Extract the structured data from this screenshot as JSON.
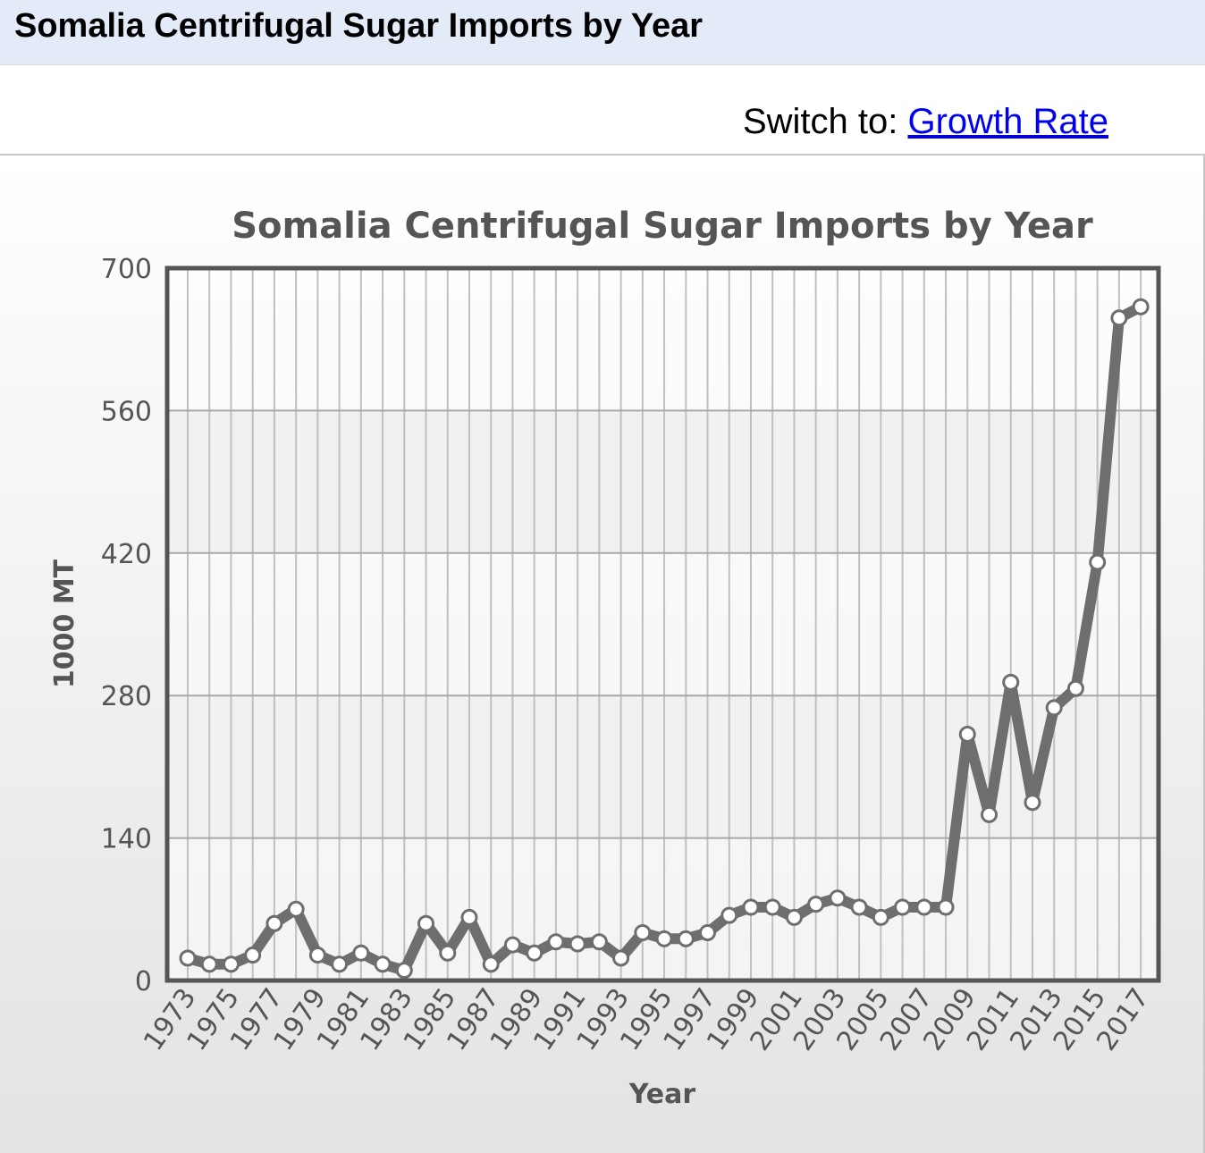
{
  "page": {
    "title": "Somalia Centrifugal Sugar Imports by Year",
    "switch_prefix": "Switch to:",
    "switch_link": "Growth Rate"
  },
  "colors": {
    "line": "#6e6e6e",
    "marker_fill": "#ffffff",
    "grid": "#c0c0c0",
    "header_bg": "#e4ebf8"
  },
  "chart_data": {
    "type": "line",
    "title": "Somalia Centrifugal Sugar Imports by Year",
    "xlabel": "Year",
    "ylabel": "1000 MT",
    "ylim": [
      0,
      700
    ],
    "yticks": [
      0,
      140,
      280,
      420,
      560,
      700
    ],
    "grid": true,
    "x": [
      1973,
      1974,
      1975,
      1976,
      1977,
      1978,
      1979,
      1980,
      1981,
      1982,
      1983,
      1984,
      1985,
      1986,
      1987,
      1988,
      1989,
      1990,
      1991,
      1992,
      1993,
      1994,
      1995,
      1996,
      1997,
      1998,
      1999,
      2000,
      2001,
      2002,
      2003,
      2004,
      2005,
      2006,
      2007,
      2008,
      2009,
      2010,
      2011,
      2012,
      2013,
      2014,
      2015,
      2016,
      2017
    ],
    "xtick_labels": [
      "1973",
      "1975",
      "1977",
      "1979",
      "1981",
      "1983",
      "1985",
      "1987",
      "1989",
      "1991",
      "1993",
      "1995",
      "1997",
      "1999",
      "2001",
      "2003",
      "2005",
      "2007",
      "2009",
      "2011",
      "2013",
      "2015",
      "2017"
    ],
    "series": [
      {
        "values": [
          22,
          16,
          16,
          25,
          56,
          70,
          25,
          16,
          27,
          16,
          10,
          56,
          27,
          62,
          16,
          35,
          27,
          38,
          36,
          38,
          22,
          47,
          41,
          41,
          47,
          64,
          72,
          72,
          62,
          75,
          81,
          72,
          62,
          72,
          72,
          72,
          242,
          163,
          293,
          175,
          268,
          287,
          411,
          651,
          662
        ]
      }
    ]
  }
}
